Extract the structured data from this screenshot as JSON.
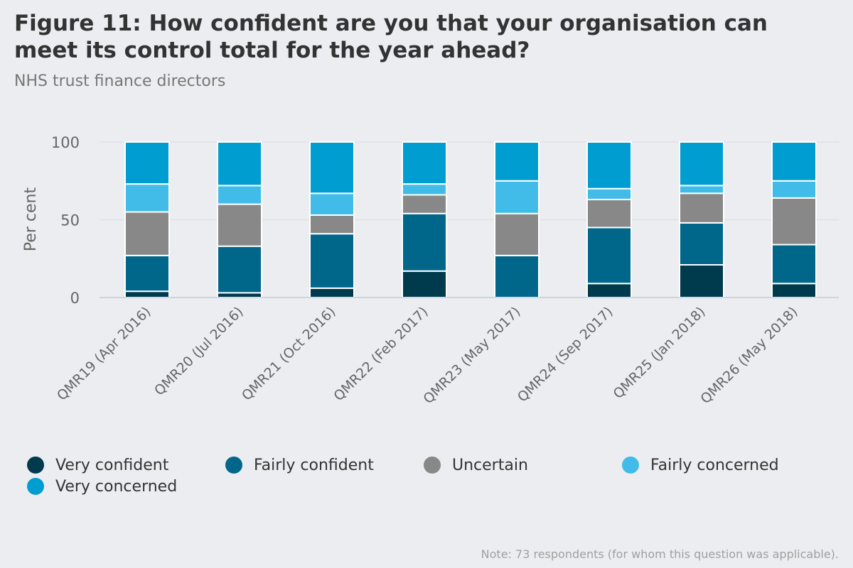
{
  "title": "Figure 11: How confident are you that your organisation can meet its control total for the year ahead?",
  "subtitle": "NHS trust finance directors",
  "note": "Note: 73 respondents (for whom this question was applicable).",
  "chart_data": {
    "type": "bar",
    "stacked": true,
    "categories": [
      "QMR19 (Apr 2016)",
      "QMR20 (Jul 2016)",
      "QMR21 (Oct 2016)",
      "QMR22 (Feb 2017)",
      "QMR23 (May 2017)",
      "QMR24 (Sep 2017)",
      "QMR25 (Jan 2018)",
      "QMR26 (May 2018)"
    ],
    "series": [
      {
        "name": "Very confident",
        "color": "#003a4d",
        "values": [
          4,
          3,
          6,
          17,
          0,
          9,
          21,
          9
        ]
      },
      {
        "name": "Fairly confident",
        "color": "#00668a",
        "values": [
          23,
          30,
          35,
          37,
          27,
          36,
          27,
          25
        ]
      },
      {
        "name": "Uncertain",
        "color": "#888888",
        "values": [
          28,
          27,
          12,
          12,
          27,
          18,
          19,
          30
        ]
      },
      {
        "name": "Fairly concerned",
        "color": "#41bce8",
        "values": [
          18,
          12,
          14,
          7,
          21,
          7,
          5,
          11
        ]
      },
      {
        "name": "Very concerned",
        "color": "#009ed0",
        "values": [
          27,
          28,
          33,
          27,
          25,
          30,
          28,
          25
        ]
      }
    ],
    "ylabel": "Per cent",
    "xlabel": "",
    "ylim": [
      0,
      100
    ],
    "yticks": [
      0,
      50,
      100
    ],
    "grid": true,
    "legend": "bottom"
  }
}
